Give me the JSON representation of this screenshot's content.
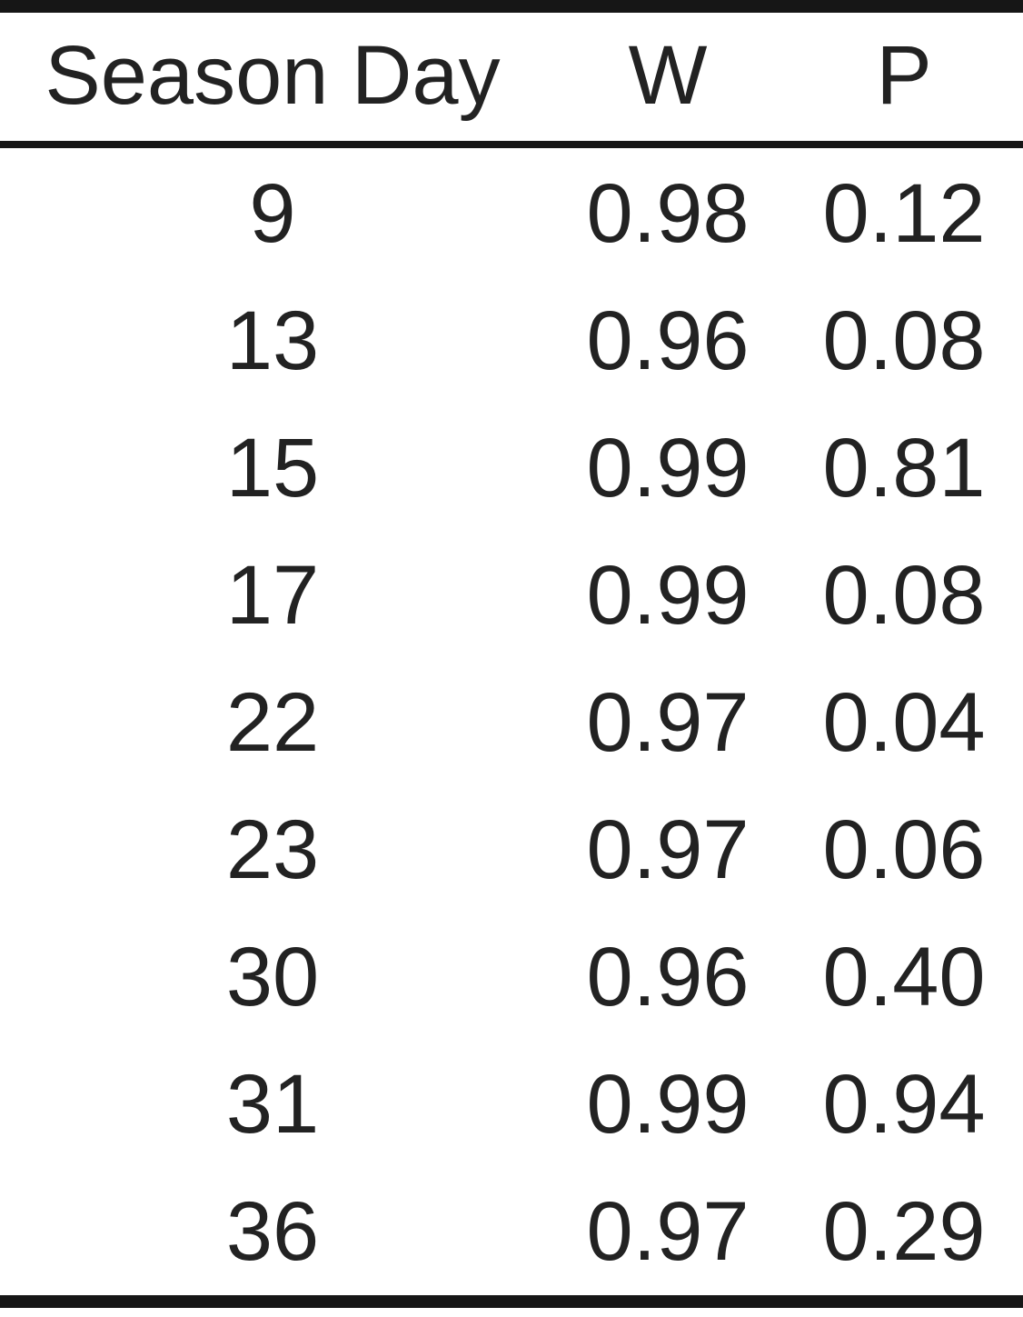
{
  "table": {
    "headers": {
      "day": "Season Day",
      "w": "W",
      "p": "P"
    },
    "rows": [
      {
        "day": "9",
        "w": "0.98",
        "p": "0.12"
      },
      {
        "day": "13",
        "w": "0.96",
        "p": "0.08"
      },
      {
        "day": "15",
        "w": "0.99",
        "p": "0.81"
      },
      {
        "day": "17",
        "w": "0.99",
        "p": "0.08"
      },
      {
        "day": "22",
        "w": "0.97",
        "p": "0.04"
      },
      {
        "day": "23",
        "w": "0.97",
        "p": "0.06"
      },
      {
        "day": "30",
        "w": "0.96",
        "p": "0.40"
      },
      {
        "day": "31",
        "w": "0.99",
        "p": "0.94"
      },
      {
        "day": "36",
        "w": "0.97",
        "p": "0.29"
      }
    ]
  }
}
